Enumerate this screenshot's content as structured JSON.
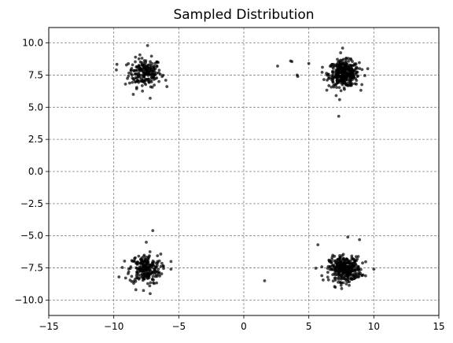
{
  "chart_data": {
    "type": "scatter",
    "title": "Sampled Distribution",
    "xlabel": "",
    "ylabel": "",
    "xlim": [
      -15,
      15
    ],
    "ylim": [
      -11.2,
      11.2
    ],
    "x_ticks": [
      -15,
      -10,
      -5,
      0,
      5,
      10,
      15
    ],
    "y_ticks": [
      -10.0,
      -7.5,
      -5.0,
      -2.5,
      0.0,
      2.5,
      5.0,
      7.5,
      10.0
    ],
    "x_tick_labels": [
      "−15",
      "−10",
      "−5",
      "0",
      "5",
      "10",
      "15"
    ],
    "y_tick_labels": [
      "−10.0",
      "−7.5",
      "−5.0",
      "−2.5",
      "0.0",
      "2.5",
      "5.0",
      "7.5",
      "10.0"
    ],
    "grid": true,
    "marker_color": "#000000",
    "marker_alpha": 0.7,
    "series": [
      {
        "clusters": [
          {
            "center": [
              -7.6,
              7.7
            ],
            "spread": [
              0.62,
              0.55
            ],
            "count": 200
          },
          {
            "center": [
              7.7,
              7.6
            ],
            "spread": [
              0.58,
              0.5
            ],
            "count": 360
          },
          {
            "center": [
              -7.6,
              -7.6
            ],
            "spread": [
              0.6,
              0.58
            ],
            "count": 230
          },
          {
            "center": [
              7.8,
              -7.6
            ],
            "spread": [
              0.6,
              0.48
            ],
            "count": 350
          }
        ],
        "points": [
          [
            2.6,
            8.2
          ],
          [
            3.6,
            8.6
          ],
          [
            3.7,
            8.55
          ],
          [
            4.1,
            7.5
          ],
          [
            4.15,
            7.4
          ],
          [
            5.0,
            8.4
          ],
          [
            7.3,
            4.3
          ],
          [
            7.6,
            9.6
          ],
          [
            1.6,
            -8.5
          ],
          [
            5.7,
            -5.7
          ],
          [
            6.0,
            -8.1
          ],
          [
            8.0,
            -5.1
          ],
          [
            8.9,
            -5.3
          ],
          [
            10.0,
            -7.6
          ],
          [
            -9.8,
            7.9
          ],
          [
            -9.1,
            6.8
          ],
          [
            -8.5,
            6.0
          ],
          [
            -7.2,
            5.7
          ],
          [
            -6.0,
            7.1
          ],
          [
            -7.4,
            9.8
          ],
          [
            -7.0,
            -4.6
          ],
          [
            -5.6,
            -7.0
          ],
          [
            -5.6,
            -7.6
          ],
          [
            -9.6,
            -8.2
          ],
          [
            -8.3,
            -9.2
          ],
          [
            -7.2,
            -9.5
          ],
          [
            -7.5,
            -5.5
          ]
        ]
      }
    ]
  }
}
